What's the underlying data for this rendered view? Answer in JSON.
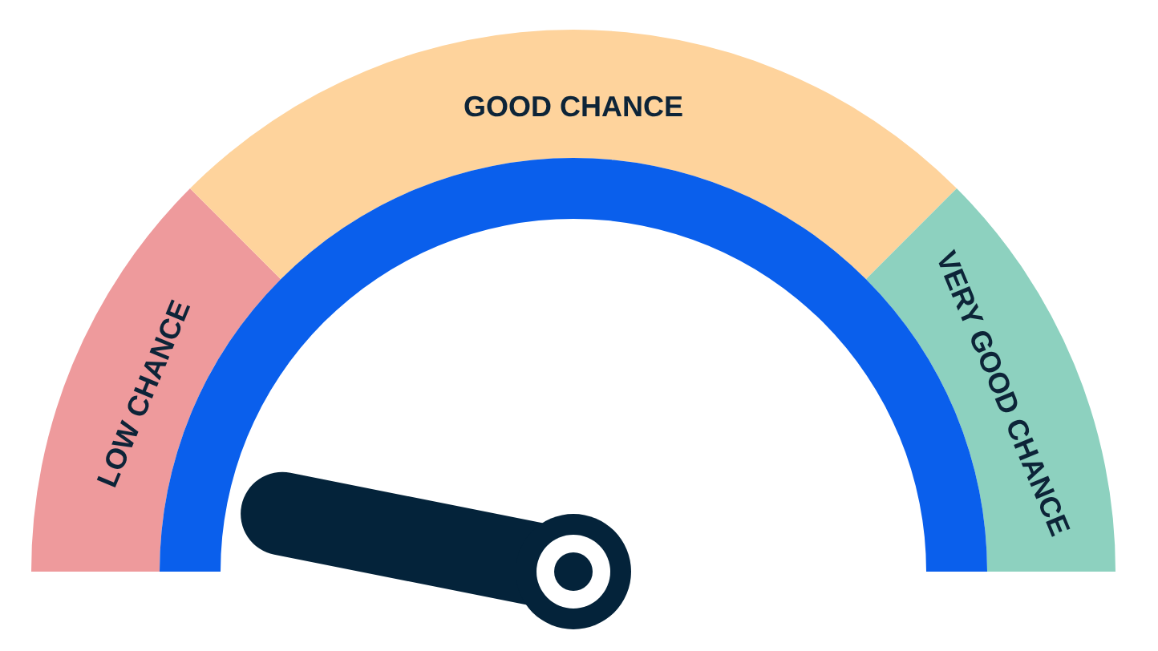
{
  "chart_data": {
    "type": "donut",
    "categories": [
      "LOW CHANCE",
      "GOOD CHANCE",
      "VERY GOOD CHANCE"
    ],
    "values": [
      25,
      50,
      25
    ],
    "colors": [
      "#ee9a9c",
      "#fed39c",
      "#8dd1bf"
    ],
    "needle": "LOW CHANCE"
  }
}
